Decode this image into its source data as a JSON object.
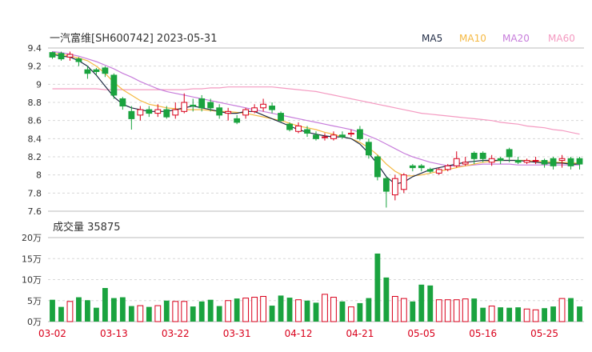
{
  "chart_data": {
    "type": "candlestick",
    "title": "一汽富维[SH600742] 2023-05-31",
    "legend": [
      {
        "name": "MA5",
        "color": "#1f2a44"
      },
      {
        "name": "MA10",
        "color": "#f5b942"
      },
      {
        "name": "MA20",
        "color": "#c77ddb"
      },
      {
        "name": "MA60",
        "color": "#f49ac1"
      }
    ],
    "price_axis": {
      "ticks": [
        "9.4",
        "9.2",
        "9",
        "8.8",
        "8.6",
        "8.4",
        "8.2",
        "8",
        "7.8",
        "7.6"
      ],
      "min": 7.6,
      "max": 9.4
    },
    "volume_axis": {
      "label": "成交量 35875",
      "ticks": [
        "20万",
        "15万",
        "10万",
        "5万",
        "0万"
      ],
      "max": 200000
    },
    "x_labels": [
      "03-02",
      "03-13",
      "03-22",
      "03-31",
      "04-12",
      "04-21",
      "05-05",
      "05-16",
      "05-25"
    ],
    "x_label_index": [
      0,
      7,
      14,
      21,
      28,
      35,
      42,
      49,
      56
    ],
    "dates": [
      "03-02",
      "03-03",
      "03-06",
      "03-07",
      "03-08",
      "03-09",
      "03-10",
      "03-13",
      "03-14",
      "03-15",
      "03-16",
      "03-17",
      "03-20",
      "03-21",
      "03-22",
      "03-23",
      "03-24",
      "03-27",
      "03-28",
      "03-29",
      "03-30",
      "03-31",
      "04-03",
      "04-04",
      "04-06",
      "04-07",
      "04-10",
      "04-11",
      "04-12",
      "04-13",
      "04-14",
      "04-17",
      "04-18",
      "04-19",
      "04-20",
      "04-21",
      "04-24",
      "04-25",
      "04-26",
      "04-27",
      "04-28",
      "05-04",
      "05-05",
      "05-08",
      "05-09",
      "05-10",
      "05-11",
      "05-12",
      "05-15",
      "05-16",
      "05-17",
      "05-18",
      "05-19",
      "05-22",
      "05-23",
      "05-24",
      "05-25",
      "05-26",
      "05-29",
      "05-30",
      "05-31"
    ],
    "open": [
      9.35,
      9.34,
      9.3,
      9.28,
      9.16,
      9.16,
      9.18,
      9.1,
      8.84,
      8.7,
      8.66,
      8.72,
      8.68,
      8.72,
      8.66,
      8.7,
      8.77,
      8.84,
      8.8,
      8.74,
      8.68,
      8.62,
      8.66,
      8.7,
      8.74,
      8.76,
      8.68,
      8.56,
      8.48,
      8.5,
      8.44,
      8.42,
      8.4,
      8.44,
      8.45,
      8.5,
      8.36,
      8.2,
      7.96,
      7.78,
      7.84,
      8.1,
      8.1,
      8.06,
      8.02,
      8.06,
      8.1,
      8.12,
      8.24,
      8.24,
      8.14,
      8.18,
      8.28,
      8.16,
      8.14,
      8.16,
      8.16,
      8.18,
      8.16,
      8.18,
      8.18
    ],
    "close": [
      9.3,
      9.28,
      9.33,
      9.25,
      9.12,
      9.14,
      9.12,
      8.88,
      8.76,
      8.62,
      8.72,
      8.68,
      8.72,
      8.64,
      8.72,
      8.8,
      8.76,
      8.74,
      8.74,
      8.66,
      8.7,
      8.58,
      8.72,
      8.74,
      8.78,
      8.72,
      8.6,
      8.5,
      8.54,
      8.46,
      8.4,
      8.42,
      8.44,
      8.42,
      8.46,
      8.4,
      8.22,
      7.98,
      7.82,
      7.96,
      8.0,
      8.08,
      8.08,
      8.04,
      8.06,
      8.1,
      8.18,
      8.14,
      8.18,
      8.18,
      8.18,
      8.16,
      8.2,
      8.14,
      8.16,
      8.16,
      8.12,
      8.1,
      8.18,
      8.1,
      8.12
    ],
    "high": [
      9.36,
      9.36,
      9.36,
      9.3,
      9.2,
      9.18,
      9.2,
      9.12,
      8.86,
      8.76,
      8.76,
      8.76,
      8.78,
      8.76,
      8.8,
      8.9,
      8.84,
      8.88,
      8.84,
      8.78,
      8.74,
      8.66,
      8.74,
      8.78,
      8.84,
      8.8,
      8.7,
      8.58,
      8.58,
      8.54,
      8.48,
      8.46,
      8.48,
      8.48,
      8.5,
      8.54,
      8.4,
      8.22,
      7.98,
      8.0,
      8.02,
      8.12,
      8.12,
      8.08,
      8.08,
      8.12,
      8.26,
      8.2,
      8.26,
      8.26,
      8.22,
      8.2,
      8.3,
      8.2,
      8.18,
      8.2,
      8.18,
      8.2,
      8.22,
      8.2,
      8.2
    ],
    "low": [
      9.28,
      9.26,
      9.26,
      9.2,
      9.06,
      9.1,
      9.08,
      8.84,
      8.72,
      8.5,
      8.6,
      8.64,
      8.64,
      8.62,
      8.62,
      8.68,
      8.7,
      8.7,
      8.7,
      8.62,
      8.6,
      8.56,
      8.62,
      8.68,
      8.7,
      8.68,
      8.58,
      8.48,
      8.46,
      8.42,
      8.38,
      8.38,
      8.38,
      8.4,
      8.42,
      8.38,
      8.18,
      7.94,
      7.64,
      7.72,
      7.8,
      8.04,
      8.04,
      8.02,
      8.0,
      8.04,
      8.08,
      8.1,
      8.12,
      8.14,
      8.1,
      8.12,
      8.14,
      8.12,
      8.12,
      8.12,
      8.08,
      8.06,
      8.08,
      8.06,
      8.06
    ],
    "volume": [
      52000,
      35000,
      48000,
      58000,
      51000,
      33000,
      80000,
      56000,
      58000,
      37000,
      38000,
      35000,
      38000,
      50000,
      48000,
      48000,
      36000,
      48000,
      52000,
      37000,
      50000,
      55000,
      56000,
      58000,
      60000,
      38000,
      62000,
      57000,
      52000,
      50000,
      45000,
      65000,
      58000,
      48000,
      35000,
      44000,
      56000,
      162000,
      105000,
      60000,
      55000,
      48000,
      88000,
      86000,
      52000,
      52000,
      52000,
      54000,
      55000,
      33000,
      37000,
      34000,
      33000,
      34000,
      30000,
      28000,
      32000,
      36000,
      55000,
      56000,
      36000
    ],
    "ma5": [
      9.33,
      9.31,
      9.3,
      9.26,
      9.2,
      9.1,
      8.98,
      8.86,
      8.78,
      8.74,
      8.72,
      8.7,
      8.7,
      8.7,
      8.72,
      8.74,
      8.76,
      8.74,
      8.72,
      8.7,
      8.68,
      8.68,
      8.7,
      8.7,
      8.66,
      8.62,
      8.58,
      8.54,
      8.5,
      8.47,
      8.45,
      8.43,
      8.42,
      8.42,
      8.4,
      8.34,
      8.24,
      8.12,
      7.98,
      7.9,
      7.92,
      7.98,
      8.02,
      8.06,
      8.08,
      8.1,
      8.12,
      8.14,
      8.15,
      8.16,
      8.16,
      8.16,
      8.16,
      8.16,
      8.15,
      8.14,
      8.13,
      8.13,
      8.13,
      8.12,
      8.12
    ],
    "ma10": [
      9.34,
      9.33,
      9.31,
      9.29,
      9.26,
      9.2,
      9.12,
      9.02,
      8.94,
      8.88,
      8.82,
      8.78,
      8.76,
      8.74,
      8.73,
      8.72,
      8.72,
      8.72,
      8.71,
      8.7,
      8.7,
      8.69,
      8.68,
      8.66,
      8.64,
      8.62,
      8.6,
      8.57,
      8.54,
      8.52,
      8.5,
      8.47,
      8.45,
      8.42,
      8.4,
      8.36,
      8.3,
      8.22,
      8.12,
      8.04,
      7.99,
      7.99,
      8.0,
      8.02,
      8.04,
      8.06,
      8.08,
      8.1,
      8.12,
      8.14,
      8.15,
      8.16,
      8.16,
      8.16,
      8.16,
      8.15,
      8.15,
      8.14,
      8.14,
      8.13,
      8.13
    ],
    "ma20": [
      9.36,
      9.35,
      9.33,
      9.31,
      9.28,
      9.25,
      9.21,
      9.17,
      9.12,
      9.08,
      9.03,
      8.99,
      8.95,
      8.92,
      8.9,
      8.88,
      8.86,
      8.84,
      8.82,
      8.8,
      8.78,
      8.76,
      8.74,
      8.72,
      8.7,
      8.68,
      8.66,
      8.64,
      8.62,
      8.6,
      8.58,
      8.56,
      8.54,
      8.52,
      8.5,
      8.47,
      8.43,
      8.39,
      8.34,
      8.29,
      8.24,
      8.2,
      8.17,
      8.14,
      8.12,
      8.1,
      8.1,
      8.1,
      8.11,
      8.12,
      8.12,
      8.12,
      8.12,
      8.11,
      8.11,
      8.11,
      8.11,
      8.11,
      8.11,
      8.11,
      8.11
    ],
    "ma60": [
      8.95,
      8.95,
      8.95,
      8.95,
      8.95,
      8.95,
      8.94,
      8.94,
      8.94,
      8.94,
      8.94,
      8.94,
      8.94,
      8.94,
      8.94,
      8.94,
      8.95,
      8.95,
      8.96,
      8.96,
      8.97,
      8.97,
      8.97,
      8.97,
      8.97,
      8.97,
      8.96,
      8.95,
      8.94,
      8.93,
      8.92,
      8.9,
      8.88,
      8.86,
      8.84,
      8.82,
      8.8,
      8.78,
      8.76,
      8.74,
      8.72,
      8.7,
      8.68,
      8.67,
      8.66,
      8.65,
      8.64,
      8.63,
      8.62,
      8.61,
      8.6,
      8.58,
      8.57,
      8.56,
      8.54,
      8.53,
      8.52,
      8.5,
      8.49,
      8.47,
      8.45
    ],
    "up_color": "#d9001b",
    "down_color": "#1aa33f"
  }
}
